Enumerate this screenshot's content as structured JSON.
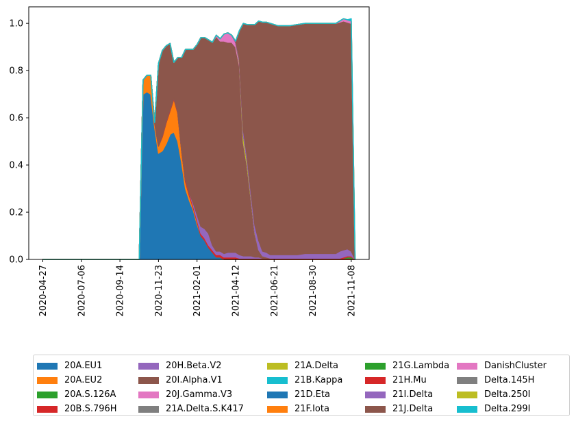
{
  "chart_data": {
    "type": "area",
    "stacked": true,
    "title": "",
    "xlabel": "",
    "ylabel": "",
    "x": [
      "2020-04-27",
      "2020-07-06",
      "2020-09-14",
      "2020-10-19",
      "2020-10-26",
      "2020-11-02",
      "2020-11-09",
      "2020-11-16",
      "2020-11-23",
      "2020-11-30",
      "2020-12-07",
      "2020-12-14",
      "2020-12-21",
      "2020-12-28",
      "2021-01-04",
      "2021-01-11",
      "2021-01-18",
      "2021-01-25",
      "2021-02-01",
      "2021-02-08",
      "2021-02-15",
      "2021-02-22",
      "2021-03-01",
      "2021-03-08",
      "2021-03-15",
      "2021-03-22",
      "2021-03-29",
      "2021-04-05",
      "2021-04-12",
      "2021-04-19",
      "2021-04-26",
      "2021-05-03",
      "2021-05-10",
      "2021-05-17",
      "2021-05-24",
      "2021-05-31",
      "2021-06-07",
      "2021-06-14",
      "2021-06-21",
      "2021-06-28",
      "2021-07-05",
      "2021-07-19",
      "2021-08-02",
      "2021-08-16",
      "2021-08-30",
      "2021-09-13",
      "2021-09-27",
      "2021-10-11",
      "2021-10-18",
      "2021-10-25",
      "2021-11-01",
      "2021-11-08",
      "2021-11-15"
    ],
    "x_ticks": [
      "2020-04-27",
      "2020-07-06",
      "2020-09-14",
      "2020-11-23",
      "2021-02-01",
      "2021-04-12",
      "2021-06-21",
      "2021-08-30",
      "2021-11-08"
    ],
    "ylim": [
      0,
      1.07
    ],
    "y_ticks": [
      "0.0",
      "0.2",
      "0.4",
      "0.6",
      "0.8",
      "1.0"
    ],
    "legend_position": "bottom",
    "legend_columns": 5,
    "series": [
      {
        "name": "20A.EU1",
        "color": "#1f77b4",
        "values": [
          0,
          0,
          0,
          0,
          0.7,
          0.71,
          0.7,
          0.56,
          0.45,
          0.46,
          0.49,
          0.53,
          0.54,
          0.5,
          0.41,
          0.3,
          0.25,
          0.21,
          0.15,
          0.1,
          0.08,
          0.05,
          0.03,
          0.01,
          0.01,
          0,
          0,
          0,
          0,
          0,
          0,
          0,
          0,
          0,
          0,
          0,
          0,
          0,
          0,
          0,
          0,
          0,
          0,
          0,
          0,
          0,
          0,
          0,
          0,
          0,
          0,
          0,
          0
        ]
      },
      {
        "name": "20A.EU2",
        "color": "#ff7f0e",
        "values": [
          0,
          0,
          0,
          0,
          0.06,
          0.07,
          0.08,
          0.02,
          0.03,
          0.06,
          0.09,
          0.1,
          0.14,
          0.12,
          0.05,
          0.03,
          0.02,
          0.01,
          0.01,
          0,
          0,
          0,
          0,
          0,
          0,
          0,
          0,
          0,
          0,
          0,
          0,
          0,
          0,
          0,
          0,
          0,
          0,
          0,
          0,
          0,
          0,
          0,
          0,
          0,
          0,
          0,
          0,
          0,
          0,
          0,
          0,
          0,
          0
        ]
      },
      {
        "name": "20A.S.126A",
        "color": "#2ca02c",
        "values": [
          0,
          0,
          0,
          0,
          0,
          0,
          0,
          0,
          0,
          0,
          0,
          0,
          0,
          0,
          0,
          0,
          0,
          0,
          0,
          0,
          0,
          0,
          0,
          0,
          0,
          0,
          0,
          0,
          0,
          0,
          0,
          0,
          0,
          0,
          0,
          0,
          0,
          0,
          0,
          0,
          0,
          0,
          0,
          0,
          0,
          0,
          0,
          0,
          0,
          0,
          0,
          0,
          0
        ]
      },
      {
        "name": "20B.S.796H",
        "color": "#d62728",
        "values": [
          0,
          0,
          0,
          0,
          0,
          0,
          0,
          0,
          0,
          0.005,
          0.005,
          0.005,
          0.005,
          0.005,
          0.005,
          0.01,
          0.01,
          0.01,
          0.01,
          0.01,
          0.01,
          0.01,
          0.01,
          0.01,
          0.01,
          0.01,
          0.01,
          0.01,
          0.01,
          0.005,
          0.005,
          0.005,
          0.005,
          0.005,
          0.005,
          0.005,
          0.005,
          0.005,
          0.005,
          0.005,
          0.005,
          0.005,
          0.005,
          0.005,
          0.005,
          0.005,
          0.005,
          0.005,
          0.005,
          0.005,
          0.005,
          0.005,
          0
        ]
      },
      {
        "name": "20H.Beta.V2",
        "color": "#9467bd",
        "values": [
          0,
          0,
          0,
          0,
          0,
          0,
          0,
          0,
          0,
          0,
          0,
          0,
          0,
          0,
          0,
          0,
          0,
          0.01,
          0.02,
          0.03,
          0.04,
          0.05,
          0.02,
          0.015,
          0.015,
          0.015,
          0.02,
          0.02,
          0.02,
          0.015,
          0.01,
          0.01,
          0.01,
          0.005,
          0.005,
          0,
          0,
          0,
          0,
          0,
          0,
          0,
          0,
          0,
          0,
          0,
          0,
          0,
          0,
          0,
          0,
          0,
          0
        ]
      },
      {
        "name": "20I.Alpha.V1",
        "color": "#8c564b",
        "values": [
          0,
          0,
          0,
          0,
          0,
          0,
          0,
          0,
          0.35,
          0.36,
          0.32,
          0.28,
          0.15,
          0.23,
          0.39,
          0.55,
          0.61,
          0.65,
          0.72,
          0.8,
          0.81,
          0.82,
          0.86,
          0.91,
          0.89,
          0.9,
          0.89,
          0.89,
          0.87,
          0.8,
          0.48,
          0.38,
          0.24,
          0.1,
          0.03,
          0.01,
          0.005,
          0,
          0,
          0,
          0,
          0,
          0,
          0,
          0,
          0,
          0,
          0,
          0,
          0,
          0,
          0,
          0
        ]
      },
      {
        "name": "20J.Gamma.V3",
        "color": "#e377c2",
        "values": [
          0,
          0,
          0,
          0,
          0,
          0,
          0,
          0,
          0,
          0,
          0,
          0,
          0,
          0,
          0,
          0,
          0,
          0,
          0,
          0,
          0,
          0,
          0,
          0.005,
          0.01,
          0.03,
          0.04,
          0.03,
          0.02,
          0.01,
          0.005,
          0,
          0,
          0,
          0,
          0,
          0,
          0,
          0,
          0,
          0,
          0,
          0,
          0,
          0,
          0,
          0,
          0,
          0,
          0,
          0,
          0,
          0
        ]
      },
      {
        "name": "21A.Delta.S.K417",
        "color": "#7f7f7f",
        "values": [
          0,
          0,
          0,
          0,
          0,
          0,
          0,
          0,
          0,
          0,
          0,
          0,
          0,
          0,
          0,
          0,
          0,
          0,
          0,
          0,
          0,
          0,
          0,
          0,
          0,
          0,
          0,
          0,
          0,
          0,
          0,
          0,
          0,
          0,
          0,
          0,
          0,
          0,
          0,
          0,
          0,
          0,
          0,
          0,
          0,
          0,
          0,
          0,
          0,
          0,
          0,
          0,
          0
        ]
      },
      {
        "name": "21A.Delta",
        "color": "#bcbd22",
        "values": [
          0,
          0,
          0,
          0,
          0,
          0,
          0,
          0,
          0,
          0,
          0,
          0,
          0,
          0,
          0,
          0,
          0,
          0,
          0,
          0,
          0,
          0,
          0,
          0,
          0,
          0,
          0,
          0,
          0,
          0.01,
          0.03,
          0.02,
          0.01,
          0.005,
          0,
          0,
          0,
          0,
          0,
          0,
          0,
          0,
          0,
          0,
          0,
          0,
          0,
          0,
          0,
          0,
          0,
          0,
          0
        ]
      },
      {
        "name": "21B.Kappa",
        "color": "#17becf",
        "values": [
          0,
          0,
          0,
          0,
          0,
          0,
          0,
          0,
          0,
          0,
          0,
          0,
          0,
          0,
          0,
          0,
          0,
          0,
          0,
          0,
          0,
          0,
          0,
          0,
          0,
          0,
          0,
          0,
          0,
          0,
          0,
          0,
          0,
          0,
          0,
          0,
          0,
          0,
          0,
          0,
          0,
          0,
          0,
          0,
          0,
          0,
          0,
          0,
          0,
          0,
          0,
          0,
          0
        ]
      },
      {
        "name": "21D.Eta",
        "color": "#1f77b4",
        "values": [
          0,
          0,
          0,
          0,
          0,
          0,
          0,
          0,
          0,
          0,
          0,
          0,
          0,
          0,
          0,
          0,
          0,
          0,
          0,
          0,
          0,
          0,
          0,
          0,
          0,
          0,
          0,
          0,
          0,
          0,
          0,
          0,
          0,
          0,
          0,
          0,
          0,
          0,
          0,
          0,
          0,
          0,
          0,
          0,
          0,
          0,
          0,
          0,
          0,
          0,
          0,
          0,
          0
        ]
      },
      {
        "name": "21F.Iota",
        "color": "#ff7f0e",
        "values": [
          0,
          0,
          0,
          0,
          0,
          0,
          0,
          0,
          0,
          0,
          0,
          0,
          0,
          0,
          0,
          0,
          0,
          0,
          0,
          0,
          0,
          0,
          0,
          0,
          0,
          0,
          0,
          0,
          0,
          0,
          0,
          0,
          0,
          0,
          0,
          0,
          0,
          0,
          0,
          0,
          0,
          0,
          0,
          0,
          0,
          0,
          0,
          0,
          0,
          0,
          0,
          0,
          0
        ]
      },
      {
        "name": "21G.Lambda",
        "color": "#2ca02c",
        "values": [
          0,
          0,
          0,
          0,
          0,
          0,
          0,
          0,
          0,
          0,
          0,
          0,
          0,
          0,
          0,
          0,
          0,
          0,
          0,
          0,
          0,
          0,
          0,
          0,
          0,
          0,
          0,
          0,
          0,
          0,
          0,
          0,
          0,
          0,
          0,
          0,
          0,
          0,
          0,
          0,
          0,
          0,
          0,
          0,
          0,
          0,
          0,
          0,
          0,
          0,
          0.005,
          0.005,
          0
        ]
      },
      {
        "name": "21H.Mu",
        "color": "#d62728",
        "values": [
          0,
          0,
          0,
          0,
          0,
          0,
          0,
          0,
          0,
          0,
          0,
          0,
          0,
          0,
          0,
          0,
          0,
          0,
          0,
          0,
          0,
          0,
          0,
          0,
          0,
          0,
          0,
          0,
          0,
          0,
          0,
          0,
          0,
          0,
          0,
          0,
          0,
          0,
          0,
          0,
          0,
          0,
          0,
          0,
          0,
          0,
          0,
          0,
          0,
          0.005,
          0.005,
          0.005,
          0
        ]
      },
      {
        "name": "21I.Delta",
        "color": "#9467bd",
        "values": [
          0,
          0,
          0,
          0,
          0,
          0,
          0,
          0,
          0,
          0,
          0,
          0,
          0,
          0,
          0,
          0,
          0,
          0,
          0,
          0,
          0,
          0,
          0,
          0,
          0,
          0,
          0,
          0,
          0.005,
          0.01,
          0.02,
          0.02,
          0.02,
          0.03,
          0.04,
          0.02,
          0.02,
          0.015,
          0.015,
          0.015,
          0.015,
          0.015,
          0.015,
          0.02,
          0.02,
          0.02,
          0.02,
          0.02,
          0.03,
          0.03,
          0.03,
          0.02,
          0
        ]
      },
      {
        "name": "21J.Delta",
        "color": "#8c564b",
        "values": [
          0,
          0,
          0,
          0,
          0,
          0,
          0,
          0,
          0,
          0,
          0,
          0,
          0,
          0,
          0,
          0,
          0,
          0,
          0,
          0,
          0,
          0,
          0,
          0,
          0,
          0,
          0,
          0,
          0,
          0.12,
          0.45,
          0.56,
          0.71,
          0.85,
          0.93,
          0.97,
          0.975,
          0.98,
          0.975,
          0.97,
          0.97,
          0.97,
          0.975,
          0.975,
          0.975,
          0.975,
          0.975,
          0.975,
          0.97,
          0.97,
          0.96,
          0.965,
          0
        ]
      },
      {
        "name": "DanishCluster",
        "color": "#e377c2",
        "values": [
          0,
          0,
          0,
          0,
          0,
          0,
          0,
          0,
          0,
          0,
          0,
          0,
          0,
          0,
          0,
          0,
          0,
          0,
          0,
          0,
          0,
          0,
          0,
          0,
          0,
          0,
          0,
          0,
          0,
          0,
          0,
          0,
          0,
          0,
          0,
          0,
          0,
          0,
          0,
          0,
          0,
          0,
          0,
          0,
          0,
          0,
          0,
          0,
          0.005,
          0.01,
          0.01,
          0.01,
          0
        ]
      },
      {
        "name": "Delta.145H",
        "color": "#7f7f7f",
        "values": [
          0,
          0,
          0,
          0,
          0,
          0,
          0,
          0,
          0,
          0,
          0,
          0,
          0,
          0,
          0,
          0,
          0,
          0,
          0,
          0,
          0,
          0,
          0,
          0,
          0,
          0,
          0,
          0,
          0,
          0,
          0,
          0,
          0,
          0,
          0,
          0,
          0,
          0,
          0,
          0,
          0,
          0,
          0,
          0,
          0,
          0,
          0,
          0,
          0,
          0,
          0,
          0,
          0
        ]
      },
      {
        "name": "Delta.250I",
        "color": "#bcbd22",
        "values": [
          0,
          0,
          0,
          0,
          0,
          0,
          0,
          0,
          0,
          0,
          0,
          0,
          0,
          0,
          0,
          0,
          0,
          0,
          0,
          0,
          0,
          0,
          0,
          0,
          0,
          0,
          0,
          0,
          0,
          0,
          0,
          0,
          0,
          0,
          0,
          0,
          0,
          0,
          0,
          0,
          0,
          0,
          0,
          0,
          0,
          0,
          0,
          0,
          0,
          0,
          0,
          0,
          0
        ]
      },
      {
        "name": "Delta.299I",
        "color": "#17becf",
        "values": [
          0,
          0,
          0,
          0,
          0,
          0,
          0,
          0,
          0,
          0,
          0,
          0,
          0,
          0,
          0,
          0,
          0,
          0,
          0,
          0,
          0,
          0,
          0,
          0,
          0,
          0,
          0,
          0,
          0,
          0,
          0,
          0,
          0,
          0,
          0,
          0,
          0,
          0,
          0,
          0,
          0,
          0,
          0,
          0,
          0,
          0,
          0,
          0,
          0,
          0,
          0,
          0.01,
          0
        ]
      }
    ]
  }
}
